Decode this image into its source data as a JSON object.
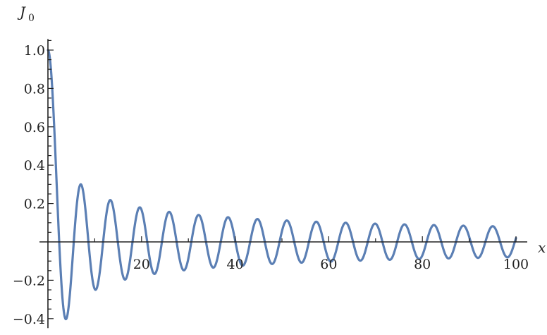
{
  "chart_data": {
    "type": "line",
    "function": "BesselJ0",
    "xlabel": "x",
    "ylabel": {
      "symbol": "J",
      "subscript": "0"
    },
    "xlim": [
      0,
      100
    ],
    "ylim": [
      -0.42,
      1.05
    ],
    "x_ticks": [
      20,
      40,
      60,
      80,
      100
    ],
    "x_tick_labels": [
      "20",
      "40",
      "60",
      "80",
      "100"
    ],
    "y_ticks": [
      -0.4,
      -0.2,
      0.2,
      0.4,
      0.6,
      0.8,
      1.0
    ],
    "y_tick_labels": [
      "−0.4",
      "−0.2",
      "0.2",
      "0.4",
      "0.6",
      "0.8",
      "1.0"
    ],
    "grid": false,
    "series": [
      {
        "color": "#5b7fb4",
        "x_range": [
          0,
          100
        ],
        "samples": 1000
      }
    ],
    "key_points": {
      "x": [
        0,
        2.405,
        3.832,
        7.016,
        10.17,
        13.32,
        20,
        40,
        60,
        80,
        100
      ],
      "y": [
        1.0,
        0.0,
        -0.403,
        0.3,
        -0.25,
        0.218,
        0.167,
        0.007,
        -0.091,
        0.056,
        0.02
      ]
    }
  }
}
